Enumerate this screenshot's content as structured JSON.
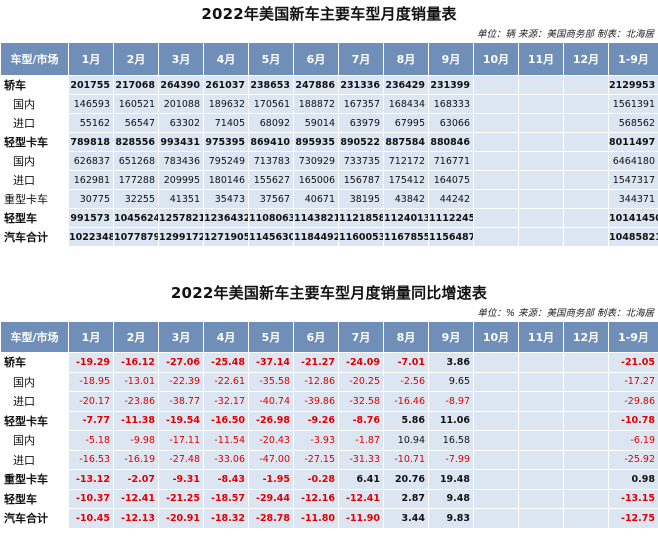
{
  "colors": {
    "header_bg": "#6f8fb8",
    "cell_bg": "#dce6f2",
    "negative": "#e00000"
  },
  "volume_table": {
    "title": "2022年美国新车主要车型月度销量表",
    "meta": "单位：辆 来源：美国商务部 制表：北海居",
    "headers": [
      "车型/市场",
      "1月",
      "2月",
      "3月",
      "4月",
      "5月",
      "6月",
      "7月",
      "8月",
      "9月",
      "10月",
      "11月",
      "12月",
      "1-9月"
    ],
    "rows": [
      {
        "name": "轿车",
        "indent": false,
        "bold": true,
        "values": [
          "201755",
          "217068",
          "264390",
          "261037",
          "238653",
          "247886",
          "231336",
          "236429",
          "231399",
          "",
          "",
          "",
          "2129953"
        ]
      },
      {
        "name": "国内",
        "indent": true,
        "bold": false,
        "values": [
          "146593",
          "160521",
          "201088",
          "189632",
          "170561",
          "188872",
          "167357",
          "168434",
          "168333",
          "",
          "",
          "",
          "1561391"
        ]
      },
      {
        "name": "进口",
        "indent": true,
        "bold": false,
        "values": [
          "55162",
          "56547",
          "63302",
          "71405",
          "68092",
          "59014",
          "63979",
          "67995",
          "63066",
          "",
          "",
          "",
          "568562"
        ]
      },
      {
        "name": "轻型卡车",
        "indent": false,
        "bold": true,
        "values": [
          "789818",
          "828556",
          "993431",
          "975395",
          "869410",
          "895935",
          "890522",
          "887584",
          "880846",
          "",
          "",
          "",
          "8011497"
        ]
      },
      {
        "name": "国内",
        "indent": true,
        "bold": false,
        "values": [
          "626837",
          "651268",
          "783436",
          "795249",
          "713783",
          "730929",
          "733735",
          "712172",
          "716771",
          "",
          "",
          "",
          "6464180"
        ]
      },
      {
        "name": "进口",
        "indent": true,
        "bold": false,
        "values": [
          "162981",
          "177288",
          "209995",
          "180146",
          "155627",
          "165006",
          "156787",
          "175412",
          "164075",
          "",
          "",
          "",
          "1547317"
        ]
      },
      {
        "name": "重型卡车",
        "indent": false,
        "bold": false,
        "values": [
          "30775",
          "32255",
          "41351",
          "35473",
          "37567",
          "40671",
          "38195",
          "43842",
          "44242",
          "",
          "",
          "",
          "344371"
        ]
      },
      {
        "name": "轻型车",
        "indent": false,
        "bold": true,
        "values": [
          "991573",
          "1045624",
          "1257821",
          "1236432",
          "1108063",
          "1143821",
          "1121858",
          "1124013",
          "1112245",
          "",
          "",
          "",
          "10141450"
        ]
      },
      {
        "name": "汽车合计",
        "indent": false,
        "bold": true,
        "values": [
          "1022348",
          "1077879",
          "1299172",
          "1271905",
          "1145630",
          "1184492",
          "1160053",
          "1167855",
          "1156487",
          "",
          "",
          "",
          "10485821"
        ]
      }
    ]
  },
  "growth_table": {
    "title": "2022年美国新车主要车型月度销量同比增速表",
    "meta": "单位：% 来源：美国商务部 制表：北海居",
    "headers": [
      "车型/市场",
      "1月",
      "2月",
      "3月",
      "4月",
      "5月",
      "6月",
      "7月",
      "8月",
      "9月",
      "10月",
      "11月",
      "12月",
      "1-9月"
    ],
    "rows": [
      {
        "name": "轿车",
        "indent": false,
        "bold": true,
        "values": [
          "-19.29",
          "-16.12",
          "-27.06",
          "-25.48",
          "-37.14",
          "-21.27",
          "-24.09",
          "-7.01",
          "3.86",
          "",
          "",
          "",
          "-21.05"
        ]
      },
      {
        "name": "国内",
        "indent": true,
        "bold": false,
        "values": [
          "-18.95",
          "-13.01",
          "-22.39",
          "-22.61",
          "-35.58",
          "-12.86",
          "-20.25",
          "-2.56",
          "9.65",
          "",
          "",
          "",
          "-17.27"
        ]
      },
      {
        "name": "进口",
        "indent": true,
        "bold": false,
        "values": [
          "-20.17",
          "-23.86",
          "-38.77",
          "-32.17",
          "-40.74",
          "-39.86",
          "-32.58",
          "-16.46",
          "-8.97",
          "",
          "",
          "",
          "-29.86"
        ]
      },
      {
        "name": "轻型卡车",
        "indent": false,
        "bold": true,
        "values": [
          "-7.77",
          "-11.38",
          "-19.54",
          "-16.50",
          "-26.98",
          "-9.26",
          "-8.76",
          "5.86",
          "11.06",
          "",
          "",
          "",
          "-10.78"
        ]
      },
      {
        "name": "国内",
        "indent": true,
        "bold": false,
        "values": [
          "-5.18",
          "-9.98",
          "-17.11",
          "-11.54",
          "-20.43",
          "-3.93",
          "-1.87",
          "10.94",
          "16.58",
          "",
          "",
          "",
          "-6.19"
        ]
      },
      {
        "name": "进口",
        "indent": true,
        "bold": false,
        "values": [
          "-16.53",
          "-16.19",
          "-27.48",
          "-33.06",
          "-47.00",
          "-27.15",
          "-31.33",
          "-10.71",
          "-7.99",
          "",
          "",
          "",
          "-25.92"
        ]
      },
      {
        "name": "重型卡车",
        "indent": false,
        "bold": true,
        "values": [
          "-13.12",
          "-2.07",
          "-9.31",
          "-8.43",
          "-1.95",
          "-0.28",
          "6.41",
          "20.76",
          "19.48",
          "",
          "",
          "",
          "0.98"
        ]
      },
      {
        "name": "轻型车",
        "indent": false,
        "bold": true,
        "values": [
          "-10.37",
          "-12.41",
          "-21.25",
          "-18.57",
          "-29.44",
          "-12.16",
          "-12.41",
          "2.87",
          "9.48",
          "",
          "",
          "",
          "-13.15"
        ]
      },
      {
        "name": "汽车合计",
        "indent": false,
        "bold": true,
        "values": [
          "-10.45",
          "-12.13",
          "-20.91",
          "-18.32",
          "-28.78",
          "-11.80",
          "-11.90",
          "3.44",
          "9.83",
          "",
          "",
          "",
          "-12.75"
        ]
      }
    ]
  }
}
